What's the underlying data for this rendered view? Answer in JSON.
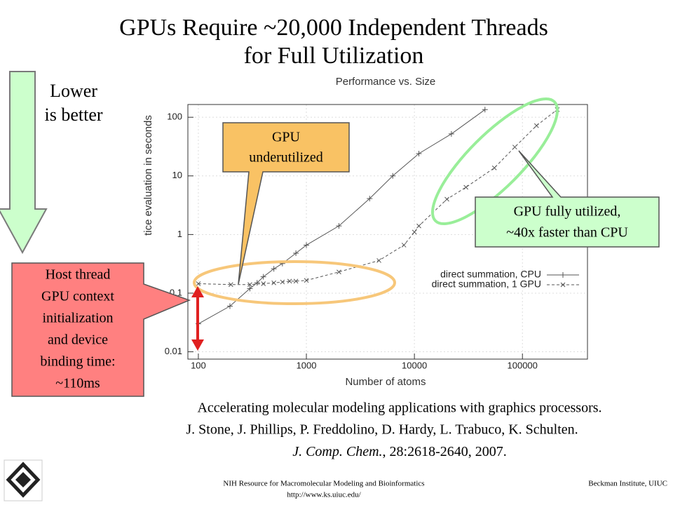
{
  "slide": {
    "title_lines": [
      "GPUs Require ~20,000 Independent Threads",
      "for Full Utilization"
    ],
    "lower_lines": [
      "Lower",
      "is better"
    ],
    "underutilized_lines": [
      "GPU",
      "underutilized"
    ],
    "fully_lines": [
      "GPU fully utilized,",
      "~40x faster than CPU"
    ],
    "host_lines": [
      "Host thread",
      "GPU context",
      "initialization",
      "and device",
      "binding time:",
      "~110ms"
    ],
    "citation_title": "Accelerating molecular modeling applications with graphics processors.",
    "citation_authors": "J. Stone, J. Phillips, P. Freddolino, D. Hardy, L. Trabuco, K. Schulten.",
    "citation_journal": "J. Comp. Chem.",
    "citation_details": ", 28:2618-2640, 2007.",
    "footer_center": "NIH Resource for Macromolecular Modeling and Bioinformatics",
    "footer_url": "http://www.ks.uiuc.edu/",
    "footer_right": "Beckman Institute, UIUC"
  },
  "chart_data": {
    "type": "line",
    "title": "Performance vs. Size",
    "x_label": "Number of atoms",
    "y_label": "tice evaluation in seconds",
    "log_x": true,
    "log_y": true,
    "grid": true,
    "legend": "lower right",
    "xlim": [
      80,
      400000
    ],
    "xticks": [
      100,
      1000,
      10000,
      100000
    ],
    "ylim": [
      0.0075,
      165
    ],
    "yticks": [
      0.01,
      0.1,
      1,
      10,
      100
    ],
    "series": [
      {
        "name": "direct summation, CPU",
        "color": "#555555",
        "marker": "+",
        "dash": false,
        "x": [
          100,
          196,
          300,
          350,
          400,
          500,
          600,
          800,
          1000,
          2000,
          3850,
          6300,
          11000,
          22000,
          45000
        ],
        "values": [
          0.03,
          0.06,
          0.12,
          0.15,
          0.19,
          0.26,
          0.32,
          0.48,
          0.66,
          1.4,
          4.1,
          10,
          24,
          52,
          135
        ]
      },
      {
        "name": "direct summation, 1 GPU",
        "color": "#555555",
        "marker": "x",
        "dash": true,
        "x": [
          100,
          200,
          300,
          400,
          500,
          600,
          700,
          800,
          1000,
          2000,
          4700,
          8000,
          10000,
          11000,
          20000,
          30000,
          55000,
          85000,
          135000,
          210000
        ],
        "values": [
          0.145,
          0.14,
          0.14,
          0.145,
          0.15,
          0.155,
          0.16,
          0.16,
          0.165,
          0.23,
          0.36,
          0.66,
          1.1,
          1.4,
          4,
          6.4,
          13.7,
          31,
          72,
          135
        ]
      }
    ]
  }
}
